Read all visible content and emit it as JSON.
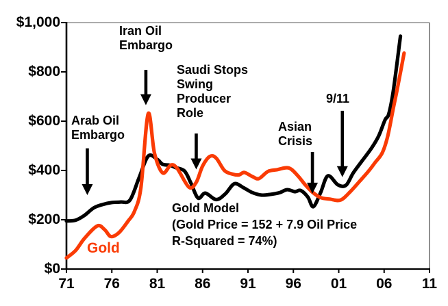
{
  "chart_data": {
    "type": "line",
    "title": "",
    "xlabel": "",
    "ylabel": "",
    "xlim": [
      1971,
      2011
    ],
    "ylim": [
      0,
      1000
    ],
    "grid": false,
    "background_color": "#FFFFFF",
    "border_color": "#909090",
    "x_ticks": [
      {
        "label": "71",
        "year": 1971
      },
      {
        "label": "76",
        "year": 1976
      },
      {
        "label": "81",
        "year": 1981
      },
      {
        "label": "86",
        "year": 1986
      },
      {
        "label": "91",
        "year": 1991
      },
      {
        "label": "96",
        "year": 1996
      },
      {
        "label": "01",
        "year": 2001
      },
      {
        "label": "06",
        "year": 2006
      },
      {
        "label": "11",
        "year": 2011
      }
    ],
    "y_ticks": [
      {
        "label": "$1,000",
        "value": 1000
      },
      {
        "label": "$800",
        "value": 800
      },
      {
        "label": "$600",
        "value": 600
      },
      {
        "label": "$400",
        "value": 400
      },
      {
        "label": "$200",
        "value": 200
      },
      {
        "label": "$0",
        "value": 0
      }
    ],
    "series": [
      {
        "name": "Gold Model",
        "color": "#000000",
        "points": [
          [
            1971,
            195
          ],
          [
            1972,
            198
          ],
          [
            1973,
            218
          ],
          [
            1974,
            248
          ],
          [
            1975,
            262
          ],
          [
            1976,
            270
          ],
          [
            1977,
            272
          ],
          [
            1978,
            280
          ],
          [
            1979,
            370
          ],
          [
            1980,
            458
          ],
          [
            1981,
            445
          ],
          [
            1981.6,
            425
          ],
          [
            1982.4,
            421
          ],
          [
            1983,
            412
          ],
          [
            1984,
            398
          ],
          [
            1984.7,
            350
          ],
          [
            1985.5,
            288
          ],
          [
            1986.3,
            308
          ],
          [
            1987.5,
            282
          ],
          [
            1988.5,
            305
          ],
          [
            1989.5,
            346
          ],
          [
            1990.5,
            330
          ],
          [
            1991.5,
            310
          ],
          [
            1992.5,
            300
          ],
          [
            1993.5,
            303
          ],
          [
            1994.5,
            310
          ],
          [
            1995.3,
            322
          ],
          [
            1996.2,
            314
          ],
          [
            1996.8,
            319
          ],
          [
            1997.6,
            292
          ],
          [
            1998.2,
            253
          ],
          [
            1999,
            310
          ],
          [
            1999.8,
            378
          ],
          [
            2000.9,
            342
          ],
          [
            2001.8,
            340
          ],
          [
            2002.6,
            390
          ],
          [
            2003.6,
            440
          ],
          [
            2004.6,
            490
          ],
          [
            2005.4,
            540
          ],
          [
            2006.1,
            605
          ],
          [
            2006.5,
            628
          ],
          [
            2007,
            720
          ],
          [
            2007.8,
            945
          ]
        ]
      },
      {
        "name": "Gold",
        "color": "#FA3B05",
        "points": [
          [
            1971,
            45
          ],
          [
            1972,
            75
          ],
          [
            1973,
            125
          ],
          [
            1974.4,
            175
          ],
          [
            1975.2,
            160
          ],
          [
            1975.9,
            132
          ],
          [
            1976.8,
            148
          ],
          [
            1977.8,
            195
          ],
          [
            1978.5,
            235
          ],
          [
            1979.2,
            330
          ],
          [
            1980,
            630
          ],
          [
            1980.7,
            470
          ],
          [
            1981.6,
            390
          ],
          [
            1982.5,
            422
          ],
          [
            1983.2,
            408
          ],
          [
            1984.5,
            332
          ],
          [
            1985.3,
            352
          ],
          [
            1986,
            418
          ],
          [
            1986.8,
            457
          ],
          [
            1987.5,
            450
          ],
          [
            1988.4,
            400
          ],
          [
            1989.3,
            385
          ],
          [
            1990,
            382
          ],
          [
            1990.6,
            392
          ],
          [
            1991.5,
            375
          ],
          [
            1992.2,
            367
          ],
          [
            1993.2,
            396
          ],
          [
            1994.2,
            403
          ],
          [
            1995.5,
            410
          ],
          [
            1996.5,
            378
          ],
          [
            1997.3,
            342
          ],
          [
            1998.1,
            312
          ],
          [
            1999,
            290
          ],
          [
            2000,
            284
          ],
          [
            2001.2,
            280
          ],
          [
            2002.3,
            315
          ],
          [
            2003.3,
            356
          ],
          [
            2004.3,
            398
          ],
          [
            2005,
            432
          ],
          [
            2005.8,
            472
          ],
          [
            2006.4,
            540
          ],
          [
            2007,
            650
          ],
          [
            2007.5,
            740
          ],
          [
            2008.2,
            876
          ]
        ]
      }
    ]
  },
  "annotations": [
    {
      "id": "arab-oil-embargo",
      "label": "Arab Oil\nEmbargo",
      "arrow": {
        "year": 1973.3,
        "value_from": 490,
        "value_to": 300
      }
    },
    {
      "id": "iran-oil-embargo",
      "label": "Iran Oil\nEmbargo",
      "arrow": {
        "year": 1979.75,
        "value_from": 808,
        "value_to": 665
      }
    },
    {
      "id": "saudi-swing",
      "label": "Saudi Stops\nSwing\nProducer\nRole",
      "arrow": {
        "year": 1985.3,
        "value_from": 550,
        "value_to": 404
      }
    },
    {
      "id": "asian-crisis",
      "label": "Asian\nCrisis",
      "arrow": {
        "year": 1998.1,
        "value_from": 475,
        "value_to": 306
      }
    },
    {
      "id": "nine-eleven",
      "label": "9/11",
      "arrow": {
        "year": 2001.4,
        "value_from": 642,
        "value_to": 373
      }
    },
    {
      "id": "gold-model-eq",
      "label": "Gold Model\n(Gold Price = 152 + 7.9 Oil Price\nR-Squared = 74%)"
    }
  ],
  "series_labels": {
    "gold": "Gold",
    "gold_color": "#FA3B05"
  }
}
